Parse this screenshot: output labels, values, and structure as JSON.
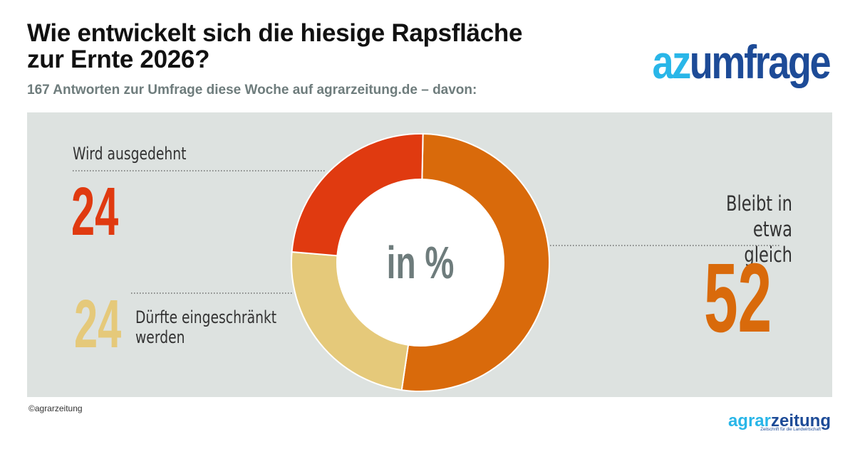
{
  "header": {
    "title_line1": "Wie entwickelt sich die hiesige Rapsfläche",
    "title_line2": "zur Ernte 2026?",
    "subtitle": "167 Antworten zur Umfrage diese Woche auf agrarzeitung.de – davon:"
  },
  "brand": {
    "part1": "az",
    "part2": "umfrage"
  },
  "chart_data": {
    "type": "pie",
    "title": "Wie entwickelt sich die hiesige Rapsfläche zur Ernte 2026?",
    "center_label": "in %",
    "slices": [
      {
        "label": "Bleibt in etwa gleich",
        "label_line1": "Bleibt in etwa",
        "label_line2": "gleich",
        "value": 52,
        "value_text": "52",
        "color": "#d96a0b"
      },
      {
        "label": "Dürfte eingeschränkt werden",
        "label_line1": "Dürfte eingeschränkt",
        "label_line2": "werden",
        "value": 24,
        "value_text": "24",
        "color": "#e5c97a"
      },
      {
        "label": "Wird ausgedehnt",
        "label_line1": "Wird ausgedehnt",
        "value": 24,
        "value_text": "24",
        "color": "#e03a10"
      }
    ]
  },
  "footer": {
    "copyright": "©agrarzeitung",
    "logo_part1": "agrar",
    "logo_part2": "zeitung",
    "tagline": "Zeitschrift für die Landwirtschaft"
  },
  "colors": {
    "panel": "#dde2e0",
    "text_gray": "#6e7c7c",
    "brand_light": "#29b6e8",
    "brand_dark": "#1d4b97"
  }
}
